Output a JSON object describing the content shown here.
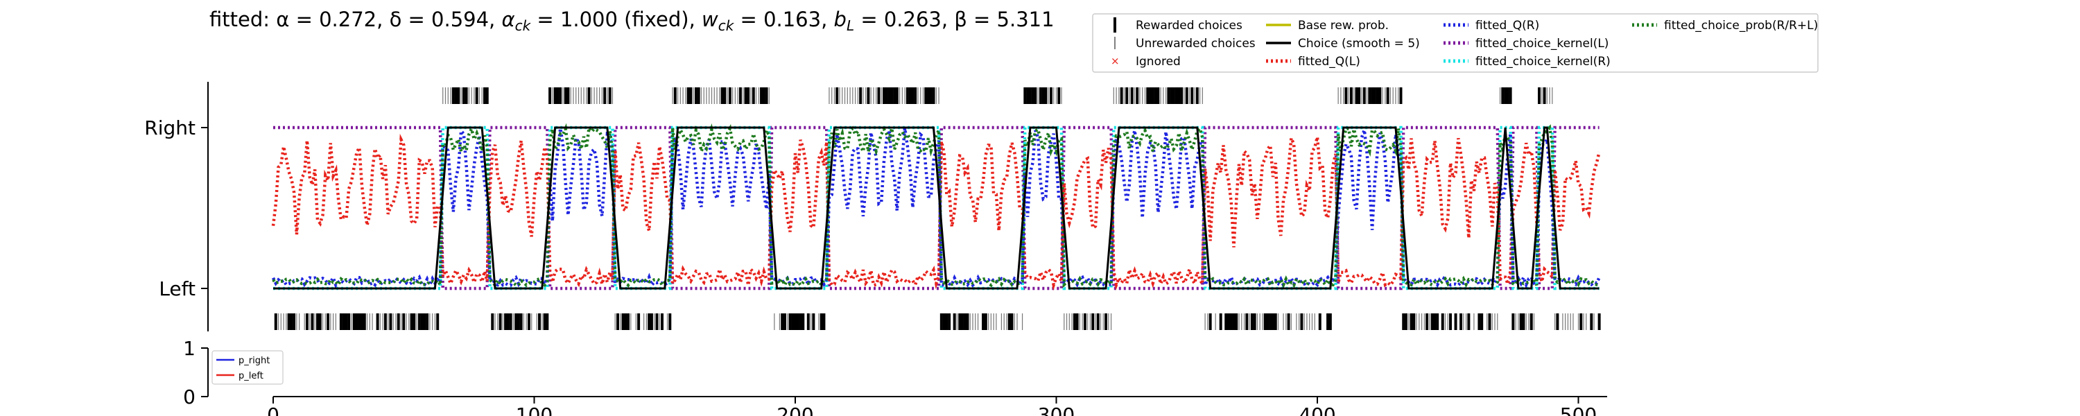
{
  "title": "fitted: α = 0.272, δ = 0.594, α_ck = 1.000 (fixed), w_ck = 0.163, b_L = 0.263, β = 5.311",
  "title_parts": {
    "prefix": "fitted: ",
    "alpha": "α = 0.272, ",
    "delta": "δ = 0.594, ",
    "alpha_ck_sym": "α",
    "alpha_ck_sub": "ck",
    "alpha_ck_val": " = 1.000 (fixed), ",
    "w_ck_sym": "w",
    "w_ck_sub": "ck",
    "w_ck_val": " = 0.163, ",
    "b_L_sym": "b",
    "b_L_sub": "L",
    "b_L_val": " = 0.263, ",
    "beta": "β = 5.311"
  },
  "legend_main": [
    {
      "label": "Rewarded choices",
      "marker": "thick-vline",
      "color": "#000000"
    },
    {
      "label": "Unrewarded choices",
      "marker": "thin-vline",
      "color": "#555555"
    },
    {
      "label": "Ignored",
      "marker": "x",
      "color": "#e8231c"
    },
    {
      "label": "Base rew. prob.",
      "marker": "line",
      "color": "#bdbd00"
    },
    {
      "label": "Choice (smooth = 5)",
      "marker": "line",
      "color": "#000000"
    },
    {
      "label": "fitted_Q(L)",
      "marker": "dotted",
      "color": "#e8231c"
    },
    {
      "label": "fitted_Q(R)",
      "marker": "dotted",
      "color": "#1f25e0"
    },
    {
      "label": "fitted_choice_kernel(L)",
      "marker": "dotted",
      "color": "#7e1a9c"
    },
    {
      "label": "fitted_choice_kernel(R)",
      "marker": "dotted",
      "color": "#17e3e3"
    },
    {
      "label": "fitted_choice_prob(R/R+L)",
      "marker": "dotted",
      "color": "#1e7a1e"
    }
  ],
  "legend_small": [
    {
      "label": "p_right",
      "color": "#1f25e0"
    },
    {
      "label": "p_left",
      "color": "#e8231c"
    }
  ],
  "chart_data": [
    {
      "type": "line",
      "panel": "choices",
      "title": "fitted: α = 0.272, δ = 0.594, α_ck = 1.000 (fixed), w_ck = 0.163, b_L = 0.263, β = 5.311",
      "xlim": [
        0,
        510
      ],
      "ylim": [
        -0.25,
        1.25
      ],
      "yticks": [
        {
          "value": 0,
          "label": "Left"
        },
        {
          "value": 1,
          "label": "Right"
        }
      ],
      "right_blocks": [
        [
          65,
          82
        ],
        [
          106,
          130
        ],
        [
          153,
          190
        ],
        [
          213,
          255
        ],
        [
          288,
          302
        ],
        [
          322,
          356
        ],
        [
          408,
          432
        ],
        [
          470,
          474
        ],
        [
          485,
          490
        ]
      ],
      "series": [
        {
          "name": "Choice (smooth = 5)",
          "color": "#000000",
          "style": "solid"
        },
        {
          "name": "fitted_Q(L)",
          "color": "#e8231c",
          "style": "dotted"
        },
        {
          "name": "fitted_Q(R)",
          "color": "#1f25e0",
          "style": "dotted"
        },
        {
          "name": "fitted_choice_kernel(L)",
          "color": "#7e1a9c",
          "style": "dotted"
        },
        {
          "name": "fitted_choice_kernel(R)",
          "color": "#17e3e3",
          "style": "dotted"
        },
        {
          "name": "fitted_choice_prob(R/R+L)",
          "color": "#1e7a1e",
          "style": "dotted"
        }
      ]
    },
    {
      "type": "line",
      "panel": "reward_probability",
      "xlim": [
        0,
        510
      ],
      "ylim": [
        0,
        1
      ],
      "yticks": [
        0,
        1
      ],
      "xticks": [
        0,
        100,
        200,
        300,
        400,
        500
      ],
      "series": [
        {
          "name": "p_right",
          "color": "#1f25e0"
        },
        {
          "name": "p_left",
          "color": "#e8231c"
        }
      ]
    }
  ]
}
